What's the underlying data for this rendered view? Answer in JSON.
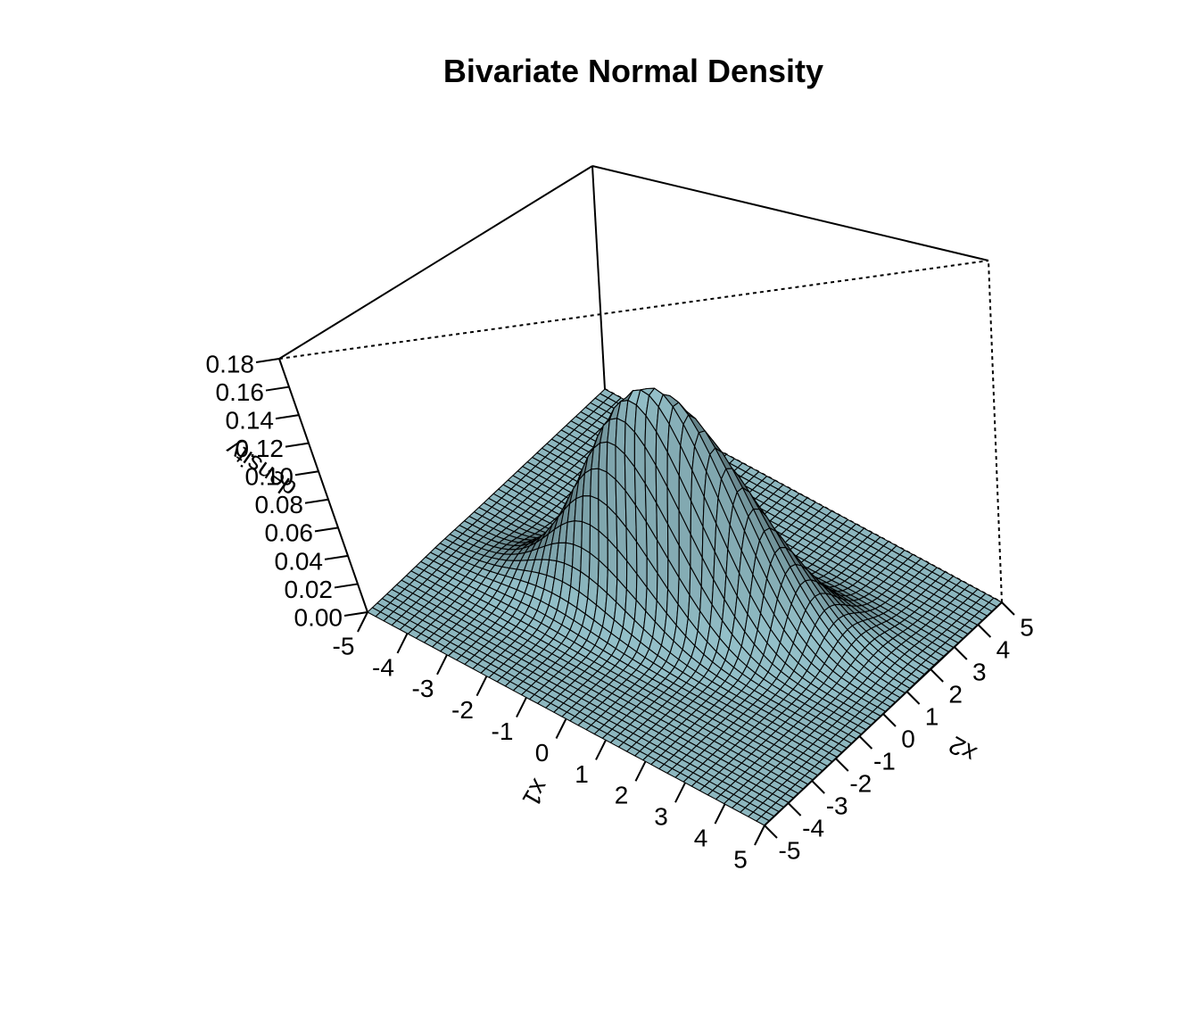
{
  "chart_data": {
    "type": "surface",
    "title": "Bivariate Normal Density",
    "xlabel": "x1",
    "ylabel": "x2",
    "zlabel": "density",
    "x_ticks": [
      "-5",
      "-4",
      "-3",
      "-2",
      "-1",
      "0",
      "1",
      "2",
      "3",
      "4",
      "5"
    ],
    "y_ticks": [
      "-5",
      "-4",
      "-3",
      "-2",
      "-1",
      "0",
      "1",
      "2",
      "3",
      "4",
      "5"
    ],
    "z_ticks": [
      "0.00",
      "0.02",
      "0.04",
      "0.06",
      "0.08",
      "0.10",
      "0.12",
      "0.14",
      "0.16",
      "0.18"
    ],
    "xlim": [
      -5,
      5
    ],
    "ylim": [
      -5,
      5
    ],
    "zlim": [
      0,
      0.18
    ],
    "grid_range": [
      -5,
      5
    ],
    "grid_points": 50,
    "density": {
      "mean": [
        0,
        0
      ],
      "sd_x1": 1.5,
      "sd_x2": 1.0,
      "rho": 0.6
    },
    "view": {
      "theta": -30,
      "phi": 30
    },
    "surface_color": "#93bfc8",
    "edge_color": "#000000",
    "box": true,
    "grid": false,
    "legend": "none"
  }
}
